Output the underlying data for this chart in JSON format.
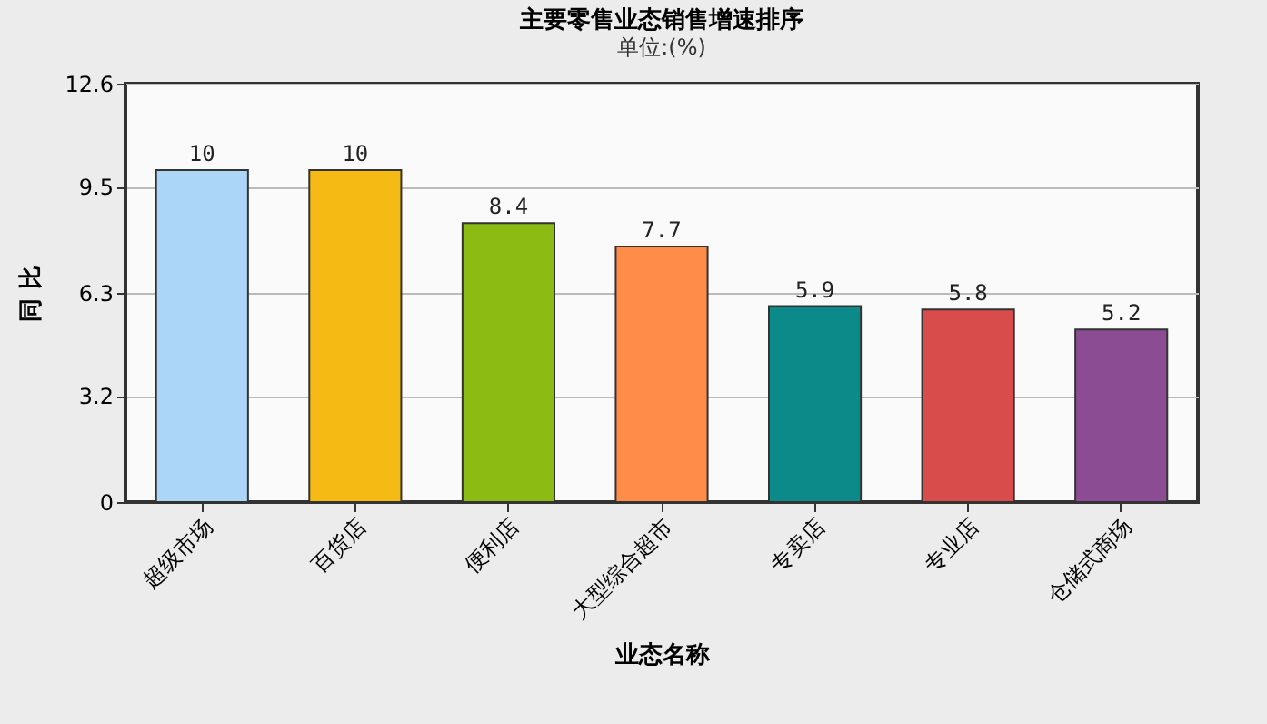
{
  "chart_data": {
    "type": "bar",
    "title": "主要零售业态销售增速排序",
    "subtitle": "单位:(%)",
    "xlabel": "业态名称",
    "ylabel": "同 比",
    "categories": [
      "超级市场",
      "百货店",
      "便利店",
      "大型综合超市",
      "专卖店",
      "专业店",
      "仓储式商场"
    ],
    "values": [
      10,
      10,
      8.4,
      7.7,
      5.9,
      5.8,
      5.2
    ],
    "colors": [
      "#acd6f8",
      "#f5bb14",
      "#8cbc14",
      "#ff8c48",
      "#0c8a8a",
      "#d84c4c",
      "#8c4c94"
    ],
    "ylim": [
      0,
      12.6
    ],
    "yticks": [
      0,
      3.2,
      6.3,
      9.5,
      12.6
    ],
    "grid": "y",
    "data_labels": true
  }
}
